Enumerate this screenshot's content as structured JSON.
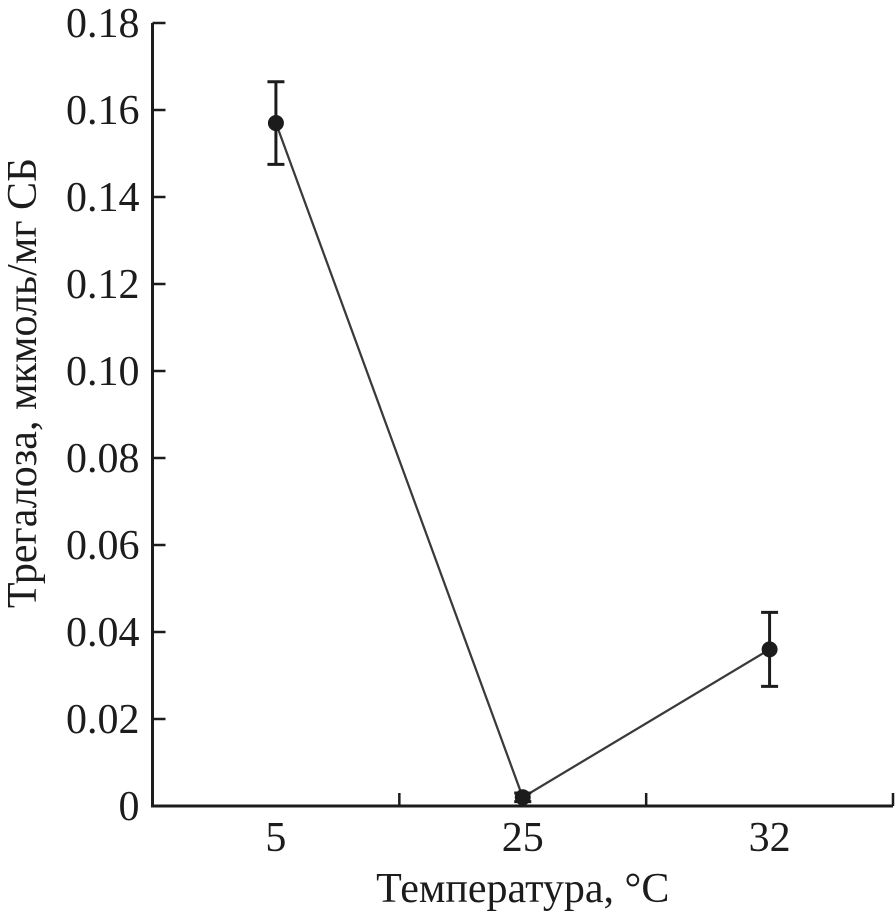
{
  "chart_data": {
    "type": "line",
    "title": "",
    "xlabel": "Температура, °C",
    "ylabel": "Трегалоза, мкмоль/мг СБ",
    "categories": [
      "5",
      "25",
      "32"
    ],
    "series": [
      {
        "name": "трегалоза",
        "values": [
          0.157,
          0.002,
          0.036
        ],
        "errors": [
          0.0095,
          0.001,
          0.0085
        ]
      }
    ],
    "ylim": [
      0,
      0.18
    ],
    "ytick_step": 0.02,
    "yticks": [
      "0",
      "0.02",
      "0.04",
      "0.06",
      "0.08",
      "0.10",
      "0.12",
      "0.14",
      "0.16",
      "0.18"
    ],
    "grid": false,
    "legend": "none",
    "marker": "filled-circle",
    "line_style": "solid",
    "error_bars": "vertical-with-caps",
    "colors": {
      "axis": "#1c1c1c",
      "text": "#1c1c1c",
      "line": "#3a3a3a",
      "marker": "#1c1c1c",
      "background": "#ffffff"
    }
  }
}
